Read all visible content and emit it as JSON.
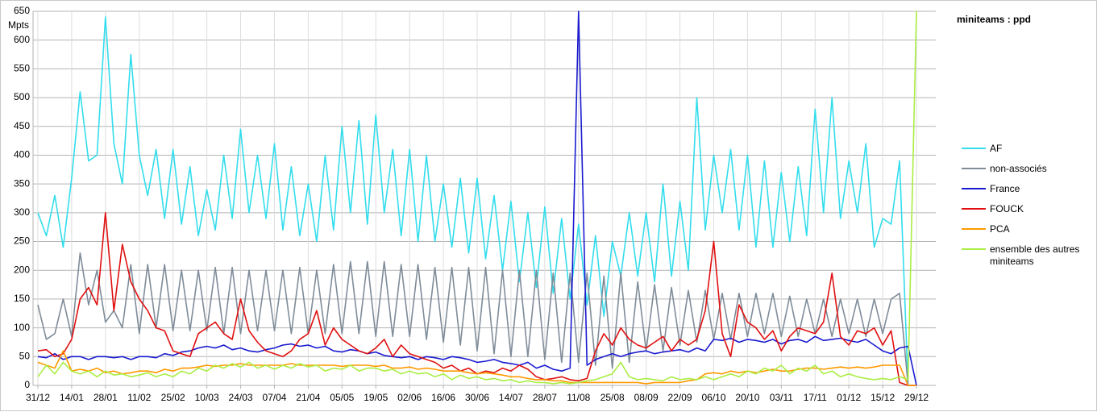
{
  "chart_data": {
    "type": "line",
    "legend_title": "miniteams : ppd",
    "ylabel": "Mpts",
    "xlim": [
      -2,
      372
    ],
    "ylim": [
      0,
      650
    ],
    "grid": true,
    "legend": "right",
    "yticks": [
      0,
      50,
      100,
      150,
      200,
      250,
      300,
      350,
      400,
      450,
      500,
      550,
      600,
      650
    ],
    "xticks": [
      {
        "value": 0,
        "label": "31/12"
      },
      {
        "value": 14,
        "label": "14/01"
      },
      {
        "value": 28,
        "label": "28/01"
      },
      {
        "value": 42,
        "label": "11/02"
      },
      {
        "value": 56,
        "label": "25/02"
      },
      {
        "value": 70,
        "label": "10/03"
      },
      {
        "value": 84,
        "label": "24/03"
      },
      {
        "value": 98,
        "label": "07/04"
      },
      {
        "value": 112,
        "label": "21/04"
      },
      {
        "value": 126,
        "label": "05/05"
      },
      {
        "value": 140,
        "label": "19/05"
      },
      {
        "value": 154,
        "label": "02/06"
      },
      {
        "value": 168,
        "label": "16/06"
      },
      {
        "value": 182,
        "label": "30/06"
      },
      {
        "value": 196,
        "label": "14/07"
      },
      {
        "value": 210,
        "label": "28/07"
      },
      {
        "value": 224,
        "label": "11/08"
      },
      {
        "value": 238,
        "label": "25/08"
      },
      {
        "value": 252,
        "label": "08/09"
      },
      {
        "value": 266,
        "label": "22/09"
      },
      {
        "value": 280,
        "label": "06/10"
      },
      {
        "value": 294,
        "label": "20/10"
      },
      {
        "value": 308,
        "label": "03/11"
      },
      {
        "value": 322,
        "label": "17/11"
      },
      {
        "value": 336,
        "label": "01/12"
      },
      {
        "value": 350,
        "label": "15/12"
      },
      {
        "value": 364,
        "label": "29/12"
      }
    ],
    "x": [
      0,
      3.5,
      7,
      10.5,
      14,
      17.5,
      21,
      24.5,
      28,
      31.5,
      35,
      38.5,
      42,
      45.5,
      49,
      52.5,
      56,
      59.5,
      63,
      66.5,
      70,
      73.5,
      77,
      80.5,
      84,
      87.5,
      91,
      94.5,
      98,
      101.5,
      105,
      108.5,
      112,
      115.5,
      119,
      122.5,
      126,
      129.5,
      133,
      136.5,
      140,
      143.5,
      147,
      150.5,
      154,
      157.5,
      161,
      164.5,
      168,
      171.5,
      175,
      178.5,
      182,
      185.5,
      189,
      192.5,
      196,
      199.5,
      203,
      206.5,
      210,
      213.5,
      217,
      220.5,
      224,
      227.5,
      231,
      234.5,
      238,
      241.5,
      245,
      248.5,
      252,
      255.5,
      259,
      262.5,
      266,
      269.5,
      273,
      276.5,
      280,
      283.5,
      287,
      290.5,
      294,
      297.5,
      301,
      304.5,
      308,
      311.5,
      315,
      318.5,
      322,
      325.5,
      329,
      332.5,
      336,
      339.5,
      343,
      346.5,
      350,
      353.5,
      357,
      360.5,
      364
    ],
    "series": [
      {
        "name": "AF",
        "color": "#33dded",
        "values": [
          300,
          260,
          330,
          240,
          360,
          510,
          390,
          400,
          640,
          420,
          350,
          575,
          400,
          330,
          410,
          290,
          410,
          280,
          380,
          260,
          340,
          270,
          400,
          290,
          445,
          300,
          400,
          290,
          420,
          270,
          380,
          260,
          350,
          250,
          400,
          270,
          450,
          300,
          460,
          280,
          470,
          300,
          410,
          260,
          410,
          250,
          400,
          250,
          350,
          240,
          360,
          230,
          360,
          220,
          330,
          200,
          320,
          180,
          300,
          170,
          310,
          160,
          290,
          150,
          280,
          140,
          260,
          120,
          250,
          190,
          300,
          190,
          300,
          180,
          350,
          190,
          320,
          200,
          500,
          270,
          400,
          300,
          410,
          270,
          400,
          240,
          390,
          240,
          370,
          250,
          380,
          260,
          480,
          300,
          500,
          290,
          390,
          300,
          420,
          240,
          290,
          280,
          390,
          0,
          0
        ]
      },
      {
        "name": "non-associés",
        "color": "#7f8c99",
        "values": [
          140,
          80,
          90,
          150,
          85,
          230,
          140,
          200,
          110,
          130,
          100,
          210,
          90,
          210,
          100,
          210,
          95,
          200,
          95,
          200,
          95,
          205,
          90,
          205,
          90,
          200,
          95,
          200,
          95,
          200,
          90,
          205,
          90,
          200,
          90,
          210,
          90,
          215,
          90,
          215,
          85,
          215,
          85,
          210,
          85,
          210,
          80,
          205,
          75,
          205,
          70,
          205,
          60,
          205,
          55,
          200,
          50,
          200,
          50,
          200,
          45,
          195,
          40,
          195,
          40,
          195,
          35,
          190,
          30,
          195,
          40,
          180,
          60,
          175,
          60,
          170,
          70,
          165,
          75,
          165,
          80,
          160,
          80,
          160,
          85,
          160,
          90,
          160,
          85,
          155,
          85,
          150,
          90,
          150,
          85,
          150,
          90,
          150,
          85,
          150,
          90,
          150,
          160,
          0,
          0
        ]
      },
      {
        "name": "France",
        "color": "#1a1ad0",
        "values": [
          50,
          48,
          55,
          45,
          50,
          50,
          45,
          50,
          50,
          48,
          50,
          45,
          50,
          50,
          48,
          55,
          52,
          58,
          60,
          65,
          68,
          65,
          70,
          62,
          65,
          60,
          58,
          62,
          65,
          70,
          72,
          68,
          70,
          65,
          68,
          60,
          58,
          62,
          60,
          55,
          58,
          52,
          50,
          48,
          50,
          45,
          50,
          48,
          45,
          50,
          48,
          45,
          40,
          42,
          45,
          40,
          38,
          35,
          40,
          30,
          35,
          28,
          25,
          30,
          650,
          35,
          45,
          50,
          55,
          50,
          55,
          58,
          60,
          55,
          58,
          60,
          62,
          58,
          65,
          60,
          80,
          78,
          82,
          75,
          80,
          78,
          75,
          80,
          72,
          78,
          80,
          75,
          85,
          78,
          80,
          82,
          78,
          75,
          80,
          70,
          60,
          55,
          65,
          68,
          0
        ]
      },
      {
        "name": "FOUCK",
        "color": "#e01010",
        "values": [
          60,
          62,
          50,
          55,
          80,
          150,
          170,
          140,
          300,
          130,
          245,
          180,
          150,
          130,
          100,
          95,
          60,
          55,
          50,
          90,
          100,
          110,
          90,
          80,
          150,
          95,
          75,
          60,
          55,
          50,
          60,
          80,
          90,
          130,
          70,
          100,
          80,
          70,
          60,
          55,
          65,
          80,
          50,
          70,
          55,
          50,
          45,
          40,
          30,
          35,
          25,
          30,
          20,
          25,
          22,
          30,
          25,
          35,
          28,
          15,
          10,
          12,
          15,
          10,
          8,
          12,
          60,
          90,
          70,
          100,
          80,
          70,
          65,
          75,
          85,
          60,
          80,
          70,
          80,
          130,
          250,
          90,
          50,
          140,
          110,
          100,
          80,
          95,
          60,
          85,
          100,
          95,
          90,
          110,
          195,
          85,
          70,
          95,
          90,
          100,
          70,
          95,
          5,
          0,
          0
        ]
      },
      {
        "name": "PCA",
        "color": "#ff9a00",
        "values": [
          40,
          35,
          30,
          60,
          25,
          28,
          25,
          30,
          22,
          25,
          20,
          22,
          25,
          25,
          22,
          28,
          25,
          30,
          30,
          32,
          35,
          33,
          35,
          35,
          38,
          35,
          35,
          35,
          35,
          35,
          38,
          35,
          35,
          35,
          35,
          35,
          33,
          35,
          35,
          35,
          33,
          35,
          30,
          30,
          32,
          28,
          30,
          28,
          25,
          25,
          25,
          22,
          20,
          22,
          20,
          18,
          15,
          15,
          12,
          10,
          10,
          8,
          8,
          5,
          5,
          5,
          5,
          5,
          5,
          5,
          5,
          5,
          3,
          5,
          5,
          5,
          5,
          8,
          10,
          20,
          22,
          20,
          25,
          22,
          25,
          22,
          25,
          28,
          25,
          25,
          28,
          30,
          30,
          28,
          30,
          32,
          30,
          32,
          30,
          32,
          35,
          35,
          35,
          0,
          0
        ]
      },
      {
        "name": "ensemble des autres miniteams",
        "color": "#aaee44",
        "values": [
          15,
          35,
          20,
          40,
          25,
          20,
          25,
          15,
          25,
          18,
          20,
          15,
          18,
          22,
          15,
          20,
          15,
          25,
          20,
          30,
          25,
          35,
          30,
          38,
          32,
          40,
          30,
          35,
          28,
          35,
          30,
          38,
          32,
          35,
          25,
          30,
          28,
          35,
          25,
          30,
          30,
          25,
          28,
          20,
          25,
          20,
          22,
          15,
          20,
          10,
          18,
          12,
          15,
          10,
          12,
          8,
          10,
          5,
          8,
          5,
          5,
          3,
          5,
          3,
          5,
          8,
          10,
          15,
          20,
          40,
          15,
          10,
          12,
          10,
          8,
          15,
          10,
          12,
          10,
          15,
          10,
          15,
          20,
          15,
          25,
          20,
          30,
          25,
          35,
          20,
          30,
          25,
          35,
          20,
          25,
          15,
          20,
          15,
          12,
          10,
          12,
          10,
          15,
          10,
          650
        ]
      }
    ]
  }
}
